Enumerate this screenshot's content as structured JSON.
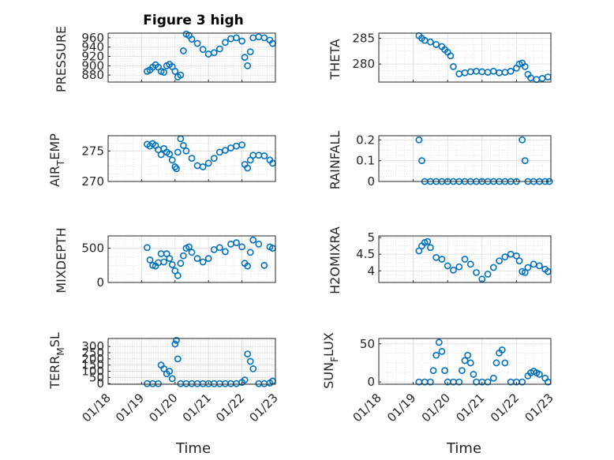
{
  "figure": {
    "title": "Figure 3 high",
    "marker_color": "#0072BD"
  },
  "chart_data": [
    {
      "type": "scatter",
      "ylabel": "PRESSURE",
      "ylim": [
        865,
        970
      ],
      "yticks": [
        "880",
        "900",
        "920",
        "940",
        "960"
      ],
      "x": [
        "01/19 04:00",
        "01/19 06:00",
        "01/19 08:00",
        "01/19 10:00",
        "01/19 12:00",
        "01/19 14:00",
        "01/19 16:00",
        "01/19 18:00",
        "01/19 20:00",
        "01/19 22:00",
        "01/20 00:00",
        "01/20 02:00",
        "01/20 04:00",
        "01/20 06:00",
        "01/20 08:00",
        "01/20 10:00",
        "01/20 12:00",
        "01/20 16:00",
        "01/20 20:00",
        "01/21 00:00",
        "01/21 04:00",
        "01/21 08:00",
        "01/21 12:00",
        "01/21 16:00",
        "01/21 20:00",
        "01/22 00:00",
        "01/22 02:00",
        "01/22 04:00",
        "01/22 06:00",
        "01/22 08:00",
        "01/22 12:00",
        "01/22 16:00",
        "01/22 20:00",
        "01/22 22:00"
      ],
      "y": [
        888,
        891,
        897,
        902,
        897,
        888,
        886,
        900,
        903,
        898,
        888,
        876,
        880,
        932,
        968,
        965,
        957,
        948,
        935,
        925,
        928,
        936,
        950,
        958,
        960,
        953,
        918,
        900,
        930,
        960,
        962,
        960,
        955,
        948
      ]
    },
    {
      "type": "scatter",
      "ylabel": "THETA",
      "ylim": [
        276.5,
        286
      ],
      "yticks": [
        "280",
        "285"
      ],
      "x": [
        "01/19 04:00",
        "01/19 06:00",
        "01/19 08:00",
        "01/19 12:00",
        "01/19 16:00",
        "01/19 20:00",
        "01/19 22:00",
        "01/20 00:00",
        "01/20 02:00",
        "01/20 04:00",
        "01/20 08:00",
        "01/20 12:00",
        "01/20 16:00",
        "01/20 20:00",
        "01/21 00:00",
        "01/21 04:00",
        "01/21 08:00",
        "01/21 12:00",
        "01/21 16:00",
        "01/21 20:00",
        "01/22 00:00",
        "01/22 02:00",
        "01/22 04:00",
        "01/22 06:00",
        "01/22 08:00",
        "01/22 10:00",
        "01/22 14:00",
        "01/22 18:00",
        "01/22 22:00"
      ],
      "y": [
        285.5,
        285,
        284.6,
        284.3,
        283.8,
        283.4,
        282.8,
        282.3,
        281.6,
        279.5,
        278.1,
        278.3,
        278.5,
        278.6,
        278.5,
        278.4,
        278.6,
        278.3,
        278.4,
        278.6,
        279.2,
        280,
        280.2,
        279.5,
        278,
        277.3,
        277,
        277.2,
        277.5
      ]
    },
    {
      "type": "scatter",
      "ylabel": "AIR_TEMP",
      "ylim": [
        270,
        277.5
      ],
      "yticks": [
        "270",
        "275"
      ],
      "x": [
        "01/19 04:00",
        "01/19 06:00",
        "01/19 08:00",
        "01/19 10:00",
        "01/19 12:00",
        "01/19 14:00",
        "01/19 16:00",
        "01/19 18:00",
        "01/19 20:00",
        "01/19 22:00",
        "01/20 00:00",
        "01/20 01:00",
        "01/20 02:00",
        "01/20 04:00",
        "01/20 06:00",
        "01/20 08:00",
        "01/20 12:00",
        "01/20 16:00",
        "01/20 20:00",
        "01/21 00:00",
        "01/21 04:00",
        "01/21 08:00",
        "01/21 12:00",
        "01/21 16:00",
        "01/21 20:00",
        "01/22 00:00",
        "01/22 02:00",
        "01/22 04:00",
        "01/22 06:00",
        "01/22 08:00",
        "01/22 12:00",
        "01/22 16:00",
        "01/22 20:00",
        "01/22 22:00"
      ],
      "y": [
        276.1,
        275.8,
        276.2,
        275.9,
        275.2,
        274.4,
        275.4,
        274.8,
        274.5,
        273.5,
        272.4,
        272.1,
        274.8,
        277,
        275.9,
        275,
        273.8,
        272.6,
        272.4,
        273,
        273.8,
        274.8,
        275.1,
        275.5,
        275.8,
        276,
        272.8,
        272.2,
        273.5,
        274.3,
        274.3,
        274.2,
        273.5,
        273
      ]
    },
    {
      "type": "scatter",
      "ylabel": "RAINFALL",
      "ylim": [
        0,
        0.22
      ],
      "yticks": [
        "0",
        "0.1",
        "0.2"
      ],
      "x": [
        "01/19 04:00",
        "01/19 06:00",
        "01/19 08:00",
        "01/19 12:00",
        "01/19 16:00",
        "01/19 20:00",
        "01/20 00:00",
        "01/20 04:00",
        "01/20 08:00",
        "01/20 12:00",
        "01/20 16:00",
        "01/20 20:00",
        "01/21 00:00",
        "01/21 04:00",
        "01/21 08:00",
        "01/21 12:00",
        "01/21 16:00",
        "01/21 20:00",
        "01/22 00:00",
        "01/22 04:00",
        "01/22 06:00",
        "01/22 08:00",
        "01/22 12:00",
        "01/22 16:00",
        "01/22 20:00",
        "01/22 23:00"
      ],
      "y": [
        0.2,
        0.1,
        0,
        0,
        0,
        0,
        0,
        0,
        0,
        0,
        0,
        0,
        0,
        0,
        0,
        0,
        0,
        0,
        0,
        0.2,
        0.1,
        0,
        0,
        0,
        0,
        0
      ]
    },
    {
      "type": "scatter",
      "ylabel": "MIXDEPTH",
      "ylim": [
        0,
        680
      ],
      "yticks": [
        "0",
        "500"
      ],
      "x": [
        "01/19 04:00",
        "01/19 06:00",
        "01/19 08:00",
        "01/19 10:00",
        "01/19 12:00",
        "01/19 14:00",
        "01/19 16:00",
        "01/19 18:00",
        "01/19 20:00",
        "01/19 22:00",
        "01/20 00:00",
        "01/20 02:00",
        "01/20 04:00",
        "01/20 06:00",
        "01/20 08:00",
        "01/20 10:00",
        "01/20 12:00",
        "01/20 16:00",
        "01/20 20:00",
        "01/21 00:00",
        "01/21 04:00",
        "01/21 08:00",
        "01/21 12:00",
        "01/21 16:00",
        "01/21 20:00",
        "01/22 00:00",
        "01/22 02:00",
        "01/22 04:00",
        "01/22 06:00",
        "01/22 08:00",
        "01/22 12:00",
        "01/22 16:00",
        "01/22 20:00",
        "01/22 22:00"
      ],
      "y": [
        510,
        330,
        250,
        240,
        290,
        420,
        300,
        420,
        350,
        260,
        170,
        100,
        280,
        390,
        500,
        520,
        440,
        350,
        300,
        350,
        480,
        510,
        450,
        560,
        580,
        520,
        280,
        240,
        440,
        620,
        560,
        250,
        520,
        500
      ]
    },
    {
      "type": "scatter",
      "ylabel": "H2OMIXRA",
      "ylim": [
        3.65,
        5.05
      ],
      "yticks": [
        "4",
        "4.5",
        "5"
      ],
      "x": [
        "01/19 04:00",
        "01/19 06:00",
        "01/19 08:00",
        "01/19 10:00",
        "01/19 12:00",
        "01/19 16:00",
        "01/19 20:00",
        "01/20 00:00",
        "01/20 04:00",
        "01/20 08:00",
        "01/20 12:00",
        "01/20 16:00",
        "01/20 20:00",
        "01/21 00:00",
        "01/21 04:00",
        "01/21 08:00",
        "01/21 12:00",
        "01/21 16:00",
        "01/21 20:00",
        "01/22 00:00",
        "01/22 02:00",
        "01/22 04:00",
        "01/22 06:00",
        "01/22 08:00",
        "01/22 12:00",
        "01/22 16:00",
        "01/22 20:00",
        "01/22 22:00"
      ],
      "y": [
        4.6,
        4.75,
        4.85,
        4.88,
        4.7,
        4.4,
        4.35,
        4.15,
        4.02,
        4.12,
        4.35,
        4.2,
        3.95,
        3.75,
        3.9,
        4.1,
        4.3,
        4.42,
        4.5,
        4.45,
        4.3,
        3.98,
        3.95,
        4.1,
        4.2,
        4.15,
        4.05,
        3.98
      ]
    },
    {
      "type": "scatter",
      "ylabel": "TERR_MSL",
      "ylim": [
        -5,
        365
      ],
      "yticks": [
        "0",
        "50",
        "100",
        "150",
        "200",
        "250",
        "300"
      ],
      "x": [
        "01/19 04:00",
        "01/19 08:00",
        "01/19 12:00",
        "01/19 14:00",
        "01/19 16:00",
        "01/19 18:00",
        "01/19 20:00",
        "01/19 22:00",
        "01/20 00:00",
        "01/20 01:00",
        "01/20 02:00",
        "01/20 04:00",
        "01/20 08:00",
        "01/20 12:00",
        "01/20 16:00",
        "01/20 20:00",
        "01/21 00:00",
        "01/21 04:00",
        "01/21 08:00",
        "01/21 12:00",
        "01/21 16:00",
        "01/21 20:00",
        "01/22 00:00",
        "01/22 02:00",
        "01/22 04:00",
        "01/22 06:00",
        "01/22 08:00",
        "01/22 12:00",
        "01/22 16:00",
        "01/22 20:00",
        "01/22 22:00"
      ],
      "y": [
        0,
        0,
        0,
        150,
        120,
        80,
        100,
        40,
        320,
        350,
        200,
        0,
        0,
        0,
        0,
        0,
        0,
        0,
        0,
        0,
        0,
        0,
        10,
        30,
        240,
        180,
        120,
        0,
        0,
        5,
        20
      ]
    },
    {
      "type": "scatter",
      "ylabel": "SUN_FLUX",
      "ylim": [
        -3,
        57
      ],
      "yticks": [
        "0",
        "50"
      ],
      "x": [
        "01/19 04:00",
        "01/19 08:00",
        "01/19 12:00",
        "01/19 14:00",
        "01/19 16:00",
        "01/19 18:00",
        "01/19 20:00",
        "01/19 22:00",
        "01/20 00:00",
        "01/20 04:00",
        "01/20 08:00",
        "01/20 10:00",
        "01/20 12:00",
        "01/20 14:00",
        "01/20 16:00",
        "01/20 18:00",
        "01/20 20:00",
        "01/21 00:00",
        "01/21 04:00",
        "01/21 08:00",
        "01/21 10:00",
        "01/21 12:00",
        "01/21 14:00",
        "01/21 16:00",
        "01/21 20:00",
        "01/22 00:00",
        "01/22 04:00",
        "01/22 08:00",
        "01/22 10:00",
        "01/22 12:00",
        "01/22 14:00",
        "01/22 16:00",
        "01/22 20:00",
        "01/22 22:00"
      ],
      "y": [
        0,
        0,
        0,
        15,
        35,
        52,
        40,
        15,
        0,
        0,
        0,
        15,
        28,
        35,
        25,
        10,
        0,
        0,
        0,
        5,
        25,
        38,
        42,
        25,
        0,
        0,
        0,
        8,
        12,
        14,
        12,
        10,
        5,
        0
      ]
    }
  ],
  "x_axis": {
    "tick_labels": [
      "01/18",
      "01/19",
      "01/20",
      "01/21",
      "01/22",
      "01/23"
    ],
    "label": "Time"
  }
}
